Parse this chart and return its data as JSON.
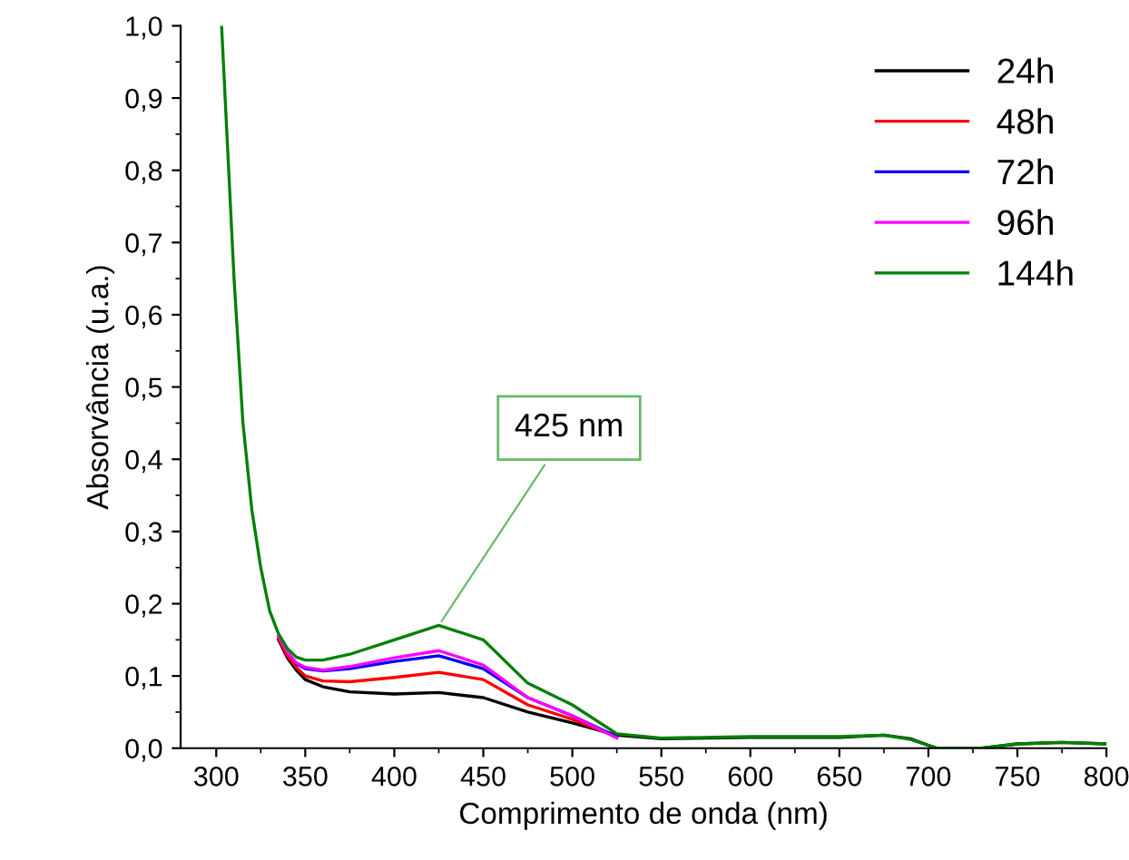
{
  "chart_data": {
    "type": "line",
    "xlabel": "Comprimento de onda (nm)",
    "ylabel": "Absorvância (u.a.)",
    "x": [
      303,
      306,
      310,
      315,
      320,
      325,
      330,
      335,
      340,
      345,
      350,
      360,
      375,
      400,
      425,
      450,
      475,
      500,
      525,
      550,
      600,
      650,
      675,
      690,
      700,
      705,
      730,
      750,
      775,
      800
    ],
    "series": [
      {
        "name": "24h",
        "color": "#000000",
        "values": [
          null,
          null,
          null,
          null,
          null,
          null,
          null,
          0.15,
          0.125,
          0.108,
          0.095,
          0.085,
          0.078,
          0.075,
          0.077,
          0.07,
          0.05,
          0.035,
          0.018,
          0.013,
          0.015,
          0.015,
          0.018,
          0.013,
          0.004,
          0.0,
          0.0,
          0.006,
          0.008,
          0.006
        ]
      },
      {
        "name": "48h",
        "color": "#ff0000",
        "values": [
          null,
          null,
          null,
          null,
          null,
          null,
          null,
          0.152,
          0.128,
          0.112,
          0.1,
          0.093,
          0.092,
          0.098,
          0.105,
          0.095,
          0.06,
          0.04,
          0.016,
          null,
          null,
          null,
          null,
          null,
          null,
          null,
          null,
          null,
          null,
          null
        ]
      },
      {
        "name": "72h",
        "color": "#0000ff",
        "values": [
          null,
          null,
          null,
          null,
          null,
          null,
          null,
          null,
          null,
          0.117,
          0.11,
          0.107,
          0.11,
          0.12,
          0.128,
          0.11,
          0.07,
          0.045,
          0.016,
          null,
          null,
          null,
          null,
          null,
          null,
          null,
          null,
          null,
          null,
          null
        ]
      },
      {
        "name": "96h",
        "color": "#ff00ff",
        "values": [
          null,
          null,
          null,
          null,
          null,
          null,
          null,
          0.155,
          0.133,
          0.118,
          0.112,
          0.108,
          0.113,
          0.125,
          0.135,
          0.115,
          0.07,
          0.045,
          0.014,
          null,
          null,
          null,
          null,
          null,
          null,
          null,
          null,
          null,
          null,
          null
        ]
      },
      {
        "name": "144h",
        "color": "#008000",
        "values": [
          1.0,
          0.85,
          0.65,
          0.45,
          0.33,
          0.25,
          0.19,
          0.158,
          0.138,
          0.126,
          0.122,
          0.122,
          0.13,
          0.15,
          0.17,
          0.15,
          0.09,
          0.06,
          0.02,
          0.014,
          0.016,
          0.016,
          0.018,
          0.012,
          0.004,
          0.0,
          0.0,
          0.006,
          0.008,
          0.006
        ]
      }
    ],
    "xlim": [
      280,
      800
    ],
    "xticks": [
      300,
      350,
      400,
      450,
      500,
      550,
      600,
      650,
      700,
      750,
      800
    ],
    "ylim": [
      0,
      1.0
    ],
    "yticks": [
      {
        "value": 0,
        "label": "0,0"
      },
      {
        "value": 0.1,
        "label": "0,1"
      },
      {
        "value": 0.2,
        "label": "0,2"
      },
      {
        "value": 0.3,
        "label": "0,3"
      },
      {
        "value": 0.4,
        "label": "0,4"
      },
      {
        "value": 0.5,
        "label": "0,5"
      },
      {
        "value": 0.6,
        "label": "0,6"
      },
      {
        "value": 0.7,
        "label": "0,7"
      },
      {
        "value": 0.8,
        "label": "0,8"
      },
      {
        "value": 0.9,
        "label": "0,9"
      },
      {
        "value": 1.0,
        "label": "1,0"
      }
    ],
    "annotations": [
      {
        "text": "425 nm",
        "x": 425,
        "y": 0.17
      }
    ],
    "legend": "top right",
    "grid": false,
    "marker": "none",
    "line_style": "solid"
  }
}
